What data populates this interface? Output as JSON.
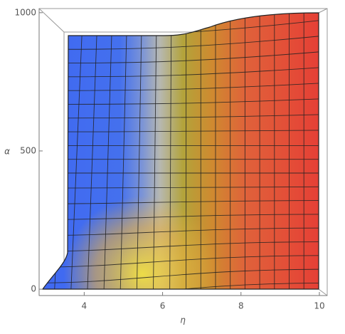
{
  "chart_data": {
    "type": "surface",
    "xlabel": "η",
    "ylabel": "α",
    "xlim": [
      2.85,
      10.2
    ],
    "ylim": [
      -23,
      1015
    ],
    "xticks": [
      4,
      6,
      8,
      10
    ],
    "yticks": [
      0,
      500,
      1000
    ]
  }
}
